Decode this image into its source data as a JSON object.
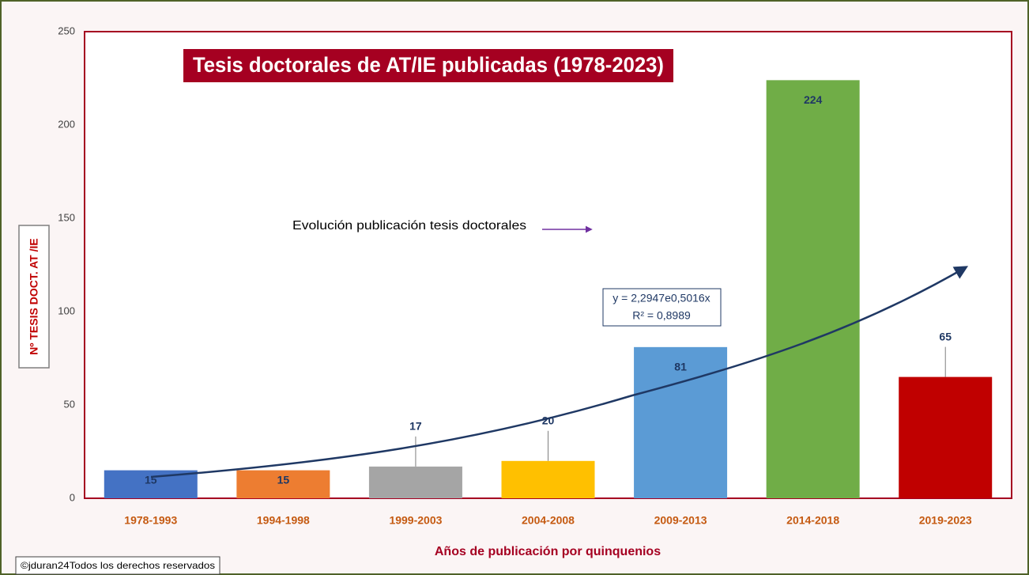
{
  "chart_data": {
    "type": "bar",
    "title": "Tesis doctorales de AT/IE publicadas (1978-2023)",
    "categories": [
      "1978-1993",
      "1994-1998",
      "1999-2003",
      "2004-2008",
      "2009-2013",
      "2014-2018",
      "2019-2023"
    ],
    "values": [
      15,
      15,
      17,
      20,
      81,
      224,
      65
    ],
    "colors": [
      "#4472c4",
      "#ed7d31",
      "#a5a5a5",
      "#ffc000",
      "#5b9bd5",
      "#70ad47",
      "#c00000"
    ],
    "ylim": [
      0,
      250
    ],
    "yticks": [
      0,
      50,
      100,
      150,
      200,
      250
    ],
    "ylabel": "Nº TESIS DOCT. AT /IE",
    "xlabel": "Años de publicación por quinquenios",
    "annotation": "Evolución publicación tesis doctorales",
    "trendline": {
      "equation": "y = 2,2947e0,5016x",
      "r2": "R² = 0,8989"
    }
  },
  "footer": "©jduran24Todos los derechos reservados"
}
